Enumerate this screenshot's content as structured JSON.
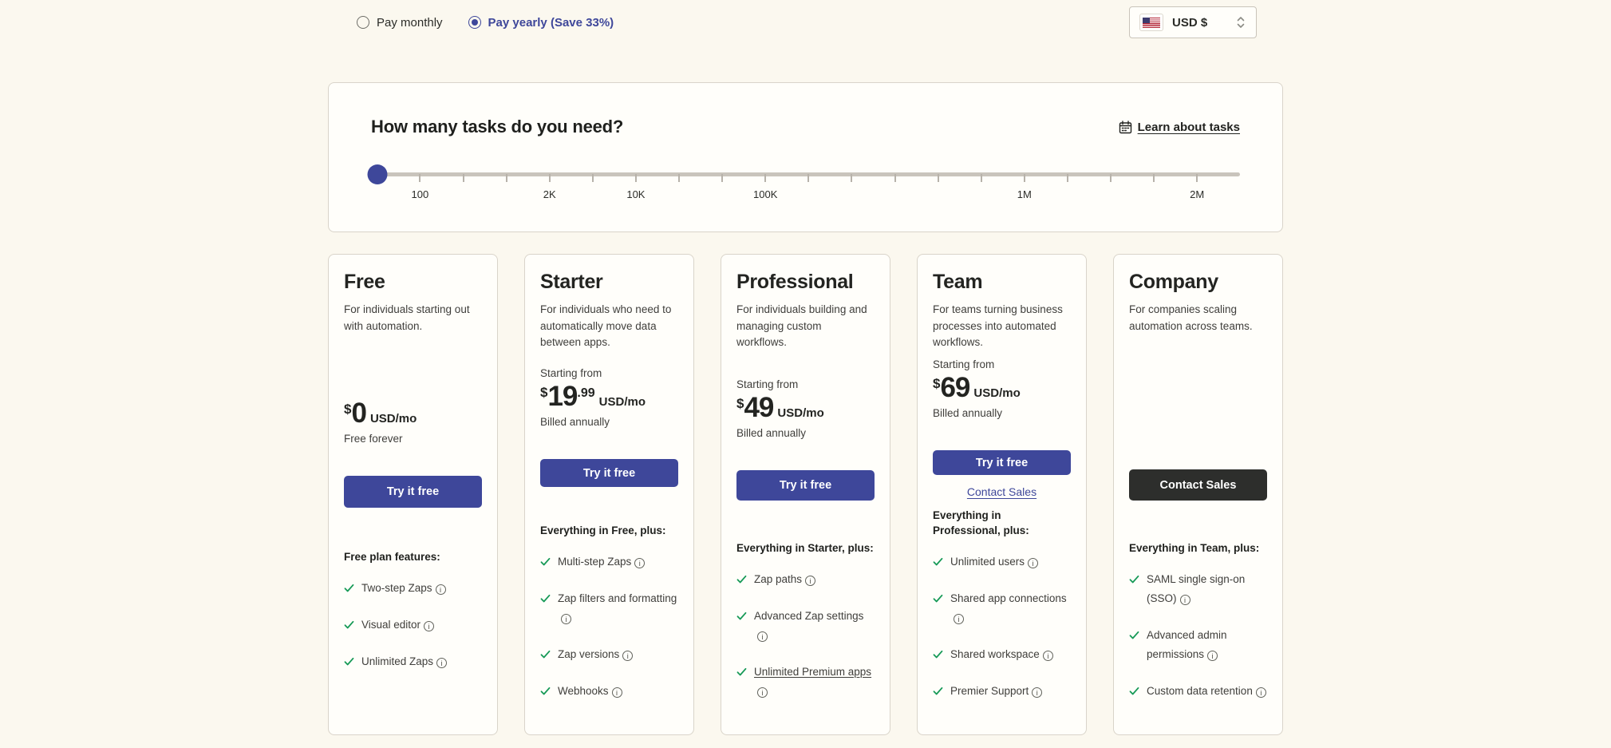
{
  "colors": {
    "accent_indigo": "#3e479a",
    "dark_button": "#2d2e2c",
    "check_green": "#179a57",
    "page_background": "#fbf8ef"
  },
  "billing_toggle": {
    "monthly_label": "Pay monthly",
    "yearly_label": "Pay yearly (Save 33%)",
    "selected": "yearly"
  },
  "currency_selector": {
    "flag": "us-flag-icon",
    "value": "USD $"
  },
  "tasks_panel": {
    "heading": "How many tasks do you need?",
    "learn_link_label": "Learn about tasks",
    "slider": {
      "handle_pct": 0.73,
      "tick_count": 19,
      "tick_first_pct": 5.64,
      "tick_last_pct": 95.06,
      "labels": [
        {
          "text": "100",
          "pct": 5.64
        },
        {
          "text": "2K",
          "pct": 20.54
        },
        {
          "text": "10K",
          "pct": 30.48
        },
        {
          "text": "100K",
          "pct": 45.38
        },
        {
          "text": "1M",
          "pct": 75.19
        },
        {
          "text": "2M",
          "pct": 95.06
        }
      ]
    }
  },
  "plans": [
    {
      "name": "Free",
      "description": "For individuals starting out with automation.",
      "price": {
        "starting_from": "",
        "symbol": "$",
        "amount": "0",
        "cents": "",
        "suffix": "USD/mo",
        "note": "Free forever"
      },
      "cta": {
        "label": "Try it free",
        "variant": "primary"
      },
      "secondary_link": "",
      "features_heading": "Free plan features:",
      "features": [
        {
          "label": "Two-step Zaps",
          "info": true
        },
        {
          "label": "Visual editor",
          "info": true
        },
        {
          "label": "Unlimited Zaps",
          "info": true
        }
      ]
    },
    {
      "name": "Starter",
      "description": "For individuals who need to automatically move data between apps.",
      "price": {
        "starting_from": "Starting from",
        "symbol": "$",
        "amount": "19",
        "cents": ".99",
        "suffix": "USD/mo",
        "note": "Billed annually"
      },
      "cta": {
        "label": "Try it free",
        "variant": "primary"
      },
      "secondary_link": "",
      "features_heading": "Everything in Free, plus:",
      "features": [
        {
          "label": "Multi-step Zaps",
          "info": true
        },
        {
          "label": "Zap filters and formatting",
          "info": true
        },
        {
          "label": "Zap versions",
          "info": true
        },
        {
          "label": "Webhooks",
          "info": true
        }
      ]
    },
    {
      "name": "Professional",
      "description": "For individuals building and managing custom workflows.",
      "price": {
        "starting_from": "Starting from",
        "symbol": "$",
        "amount": "49",
        "cents": "",
        "suffix": "USD/mo",
        "note": "Billed annually"
      },
      "cta": {
        "label": "Try it free",
        "variant": "primary"
      },
      "secondary_link": "",
      "features_heading": "Everything in Starter, plus:",
      "features": [
        {
          "label": "Zap paths",
          "info": true
        },
        {
          "label": "Advanced Zap settings",
          "info": true
        },
        {
          "label": "Unlimited Premium apps",
          "info": true,
          "underlined": true
        }
      ]
    },
    {
      "name": "Team",
      "description": "For teams turning business processes into automated workflows.",
      "price": {
        "starting_from": "Starting from",
        "symbol": "$",
        "amount": "69",
        "cents": "",
        "suffix": "USD/mo",
        "note": "Billed annually"
      },
      "cta": {
        "label": "Try it free",
        "variant": "primary"
      },
      "secondary_link": "Contact Sales",
      "features_heading": "Everything in Professional, plus:",
      "features": [
        {
          "label": "Unlimited users",
          "info": true
        },
        {
          "label": "Shared app connections",
          "info": true
        },
        {
          "label": "Shared workspace",
          "info": true
        },
        {
          "label": "Premier Support",
          "info": true
        }
      ]
    },
    {
      "name": "Company",
      "description": "For companies scaling automation across teams.",
      "price": {
        "starting_from": "",
        "symbol": "",
        "amount": "",
        "cents": "",
        "suffix": "",
        "note": ""
      },
      "cta": {
        "label": "Contact Sales",
        "variant": "dark"
      },
      "secondary_link": "",
      "features_heading": "Everything in Team, plus:",
      "features": [
        {
          "label": "SAML single sign-on (SSO)",
          "info": true
        },
        {
          "label": "Advanced admin permissions",
          "info": true
        },
        {
          "label": "Custom data retention",
          "info": true
        }
      ]
    }
  ]
}
